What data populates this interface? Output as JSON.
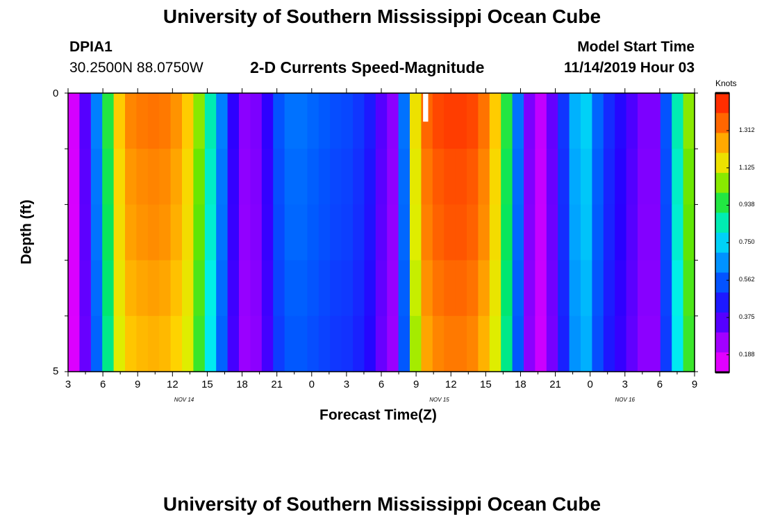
{
  "page": {
    "title_top": "University of Southern Mississippi Ocean Cube",
    "title_bottom": "University of Southern Mississippi Ocean Cube"
  },
  "header": {
    "station_id": "DPIA1",
    "coordinates": "30.2500N 88.0750W",
    "chart_title": "2-D Currents Speed-Magnitude",
    "model_start_label": "Model Start Time",
    "model_start_value": "11/14/2019 Hour 03"
  },
  "colorbar": {
    "unit": "Knots",
    "ticks": [
      "1.312",
      "1.125",
      "0.938",
      "0.750",
      "0.562",
      "0.375",
      "0.188"
    ],
    "range": [
      0.1,
      1.5
    ]
  },
  "chart_data": {
    "type": "heatmap",
    "title": "2-D Currents Speed-Magnitude",
    "xlabel": "Forecast Time(Z)",
    "ylabel": "Depth (ft)",
    "x_tick_labels": [
      "3",
      "6",
      "9",
      "12",
      "15",
      "18",
      "21",
      "0",
      "3",
      "6",
      "9",
      "12",
      "15",
      "18",
      "21",
      "0",
      "3",
      "6",
      "9"
    ],
    "date_labels": [
      {
        "label": "NOV 14",
        "hour_index": 10
      },
      {
        "label": "NOV 15",
        "hour_index": 32
      },
      {
        "label": "NOV 16",
        "hour_index": 48
      }
    ],
    "y_tick_labels": [
      "0",
      "5"
    ],
    "ylim": [
      0,
      5
    ],
    "depth_levels": 5,
    "x_range_hours": [
      0,
      54
    ],
    "speed_knots_per_hour": [
      0.17,
      0.35,
      0.62,
      0.95,
      1.2,
      1.3,
      1.32,
      1.33,
      1.32,
      1.28,
      1.2,
      1.05,
      0.85,
      0.62,
      0.4,
      0.28,
      0.3,
      0.4,
      0.55,
      0.6,
      0.6,
      0.58,
      0.56,
      0.54,
      0.53,
      0.5,
      0.45,
      0.35,
      0.28,
      0.6,
      1.15,
      1.35,
      1.4,
      1.42,
      1.42,
      1.4,
      1.33,
      1.2,
      0.95,
      0.6,
      0.3,
      0.2,
      0.33,
      0.5,
      0.7,
      0.75,
      0.58,
      0.48,
      0.42,
      0.36,
      0.3,
      0.3,
      0.55,
      0.85,
      1.05
    ],
    "depth_factors": [
      1.0,
      0.98,
      0.97,
      0.95,
      0.93
    ],
    "gap_hour": 30.6
  }
}
